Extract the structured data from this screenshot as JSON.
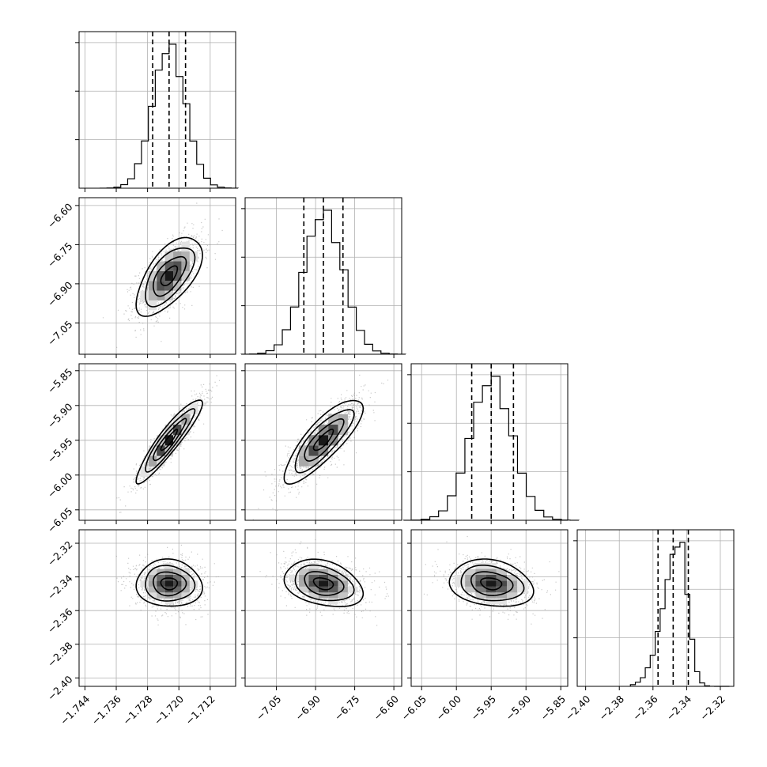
{
  "chart_data": {
    "type": "corner",
    "title": "",
    "grid": true,
    "parameters": [
      {
        "name": "",
        "mean": -1.7225,
        "std": 0.0042,
        "q16": -1.7267,
        "q50": -1.7225,
        "q84": -1.7183,
        "range": [
          -1.7455,
          -1.7055
        ],
        "ticks": [
          "-1.744",
          "-1.736",
          "-1.728",
          "-1.720",
          "-1.712"
        ],
        "tick_values": [
          -1.744,
          -1.736,
          -1.728,
          -1.72,
          -1.712
        ]
      },
      {
        "name": "",
        "mean": -6.87,
        "std": 0.075,
        "q16": -6.945,
        "q50": -6.87,
        "q84": -6.795,
        "range": [
          -7.17,
          -6.57
        ],
        "ticks": [
          "-7.05",
          "-6.90",
          "-6.75",
          "-6.60"
        ],
        "tick_values": [
          -7.05,
          -6.9,
          -6.75,
          -6.6
        ]
      },
      {
        "name": "",
        "mean": -5.95,
        "std": 0.03,
        "q16": -5.978,
        "q50": -5.95,
        "q84": -5.918,
        "range": [
          -6.065,
          -5.84
        ],
        "ticks": [
          "-6.05",
          "-6.00",
          "-5.95",
          "-5.90",
          "-5.85"
        ],
        "tick_values": [
          -6.05,
          -6.0,
          -5.95,
          -5.9,
          -5.85
        ]
      },
      {
        "name": "",
        "mean": -2.344,
        "std": 0.007,
        "q16": -2.357,
        "q50": -2.348,
        "q84": -2.339,
        "range": [
          -2.405,
          -2.312
        ],
        "ticks": [
          "-2.40",
          "-2.38",
          "-2.36",
          "-2.34",
          "-2.32"
        ],
        "tick_values": [
          -2.4,
          -2.38,
          -2.36,
          -2.34,
          -2.32
        ]
      }
    ],
    "correlations": {
      "1_0": 0.62,
      "2_0": 0.92,
      "2_1": 0.82,
      "3_0": -0.05,
      "3_1": -0.3,
      "3_2": -0.2
    },
    "histogram_bins": 20,
    "contour_levels": [
      "0.5σ",
      "1σ",
      "1.5σ",
      "2σ"
    ]
  }
}
